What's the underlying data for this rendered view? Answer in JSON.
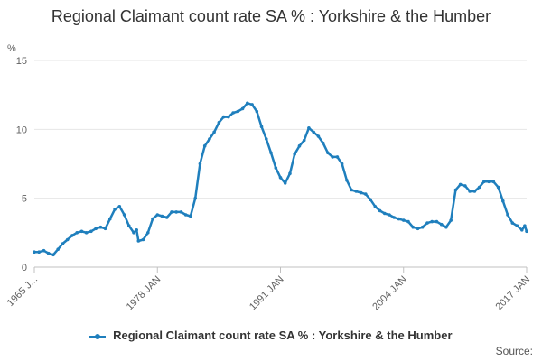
{
  "chart_data": {
    "type": "line",
    "title": "Regional Claimant count rate SA % : Yorkshire & the Humber",
    "ylabel": "%",
    "ylim": [
      0,
      15
    ],
    "yticks": [
      "0",
      "5",
      "10",
      "15"
    ],
    "xlim": [
      1965.0,
      2017.0
    ],
    "xtick_labels": [
      "1965 J...",
      "1978 JAN",
      "1991 JAN",
      "2004 JAN",
      "2017 JAN"
    ],
    "grid": true,
    "legend_position": "bottom",
    "series": [
      {
        "name": "Regional Claimant count rate SA % : Yorkshire & the Humber",
        "color": "#1f7fbd",
        "points": [
          [
            1965.0,
            1.1
          ],
          [
            1965.5,
            1.1
          ],
          [
            1966.0,
            1.2
          ],
          [
            1966.5,
            1.0
          ],
          [
            1967.0,
            0.9
          ],
          [
            1967.5,
            1.3
          ],
          [
            1968.0,
            1.7
          ],
          [
            1968.5,
            2.0
          ],
          [
            1969.0,
            2.3
          ],
          [
            1969.5,
            2.5
          ],
          [
            1970.0,
            2.6
          ],
          [
            1970.5,
            2.5
          ],
          [
            1971.0,
            2.6
          ],
          [
            1971.5,
            2.8
          ],
          [
            1972.0,
            2.9
          ],
          [
            1972.5,
            2.8
          ],
          [
            1973.0,
            3.5
          ],
          [
            1973.5,
            4.2
          ],
          [
            1974.0,
            4.4
          ],
          [
            1974.5,
            3.8
          ],
          [
            1975.0,
            3.0
          ],
          [
            1975.5,
            2.5
          ],
          [
            1975.8,
            2.7
          ],
          [
            1976.0,
            1.9
          ],
          [
            1976.5,
            2.0
          ],
          [
            1977.0,
            2.5
          ],
          [
            1977.5,
            3.5
          ],
          [
            1978.0,
            3.8
          ],
          [
            1978.5,
            3.7
          ],
          [
            1979.0,
            3.6
          ],
          [
            1979.5,
            4.0
          ],
          [
            1980.0,
            4.0
          ],
          [
            1980.5,
            4.0
          ],
          [
            1981.0,
            3.8
          ],
          [
            1981.5,
            3.7
          ],
          [
            1982.0,
            5.0
          ],
          [
            1982.5,
            7.5
          ],
          [
            1983.0,
            8.8
          ],
          [
            1983.5,
            9.3
          ],
          [
            1984.0,
            9.8
          ],
          [
            1984.5,
            10.5
          ],
          [
            1985.0,
            10.9
          ],
          [
            1985.5,
            10.9
          ],
          [
            1986.0,
            11.2
          ],
          [
            1986.5,
            11.3
          ],
          [
            1987.0,
            11.5
          ],
          [
            1987.5,
            11.9
          ],
          [
            1988.0,
            11.8
          ],
          [
            1988.5,
            11.3
          ],
          [
            1989.0,
            10.2
          ],
          [
            1989.5,
            9.3
          ],
          [
            1990.0,
            8.3
          ],
          [
            1990.5,
            7.2
          ],
          [
            1991.0,
            6.5
          ],
          [
            1991.5,
            6.1
          ],
          [
            1992.0,
            6.8
          ],
          [
            1992.5,
            8.2
          ],
          [
            1993.0,
            8.8
          ],
          [
            1993.5,
            9.2
          ],
          [
            1994.0,
            10.1
          ],
          [
            1994.5,
            9.8
          ],
          [
            1995.0,
            9.5
          ],
          [
            1995.5,
            9.0
          ],
          [
            1996.0,
            8.3
          ],
          [
            1996.5,
            8.0
          ],
          [
            1997.0,
            8.0
          ],
          [
            1997.5,
            7.5
          ],
          [
            1998.0,
            6.3
          ],
          [
            1998.5,
            5.6
          ],
          [
            1999.0,
            5.5
          ],
          [
            1999.5,
            5.4
          ],
          [
            2000.0,
            5.3
          ],
          [
            2000.5,
            4.9
          ],
          [
            2001.0,
            4.4
          ],
          [
            2001.5,
            4.1
          ],
          [
            2002.0,
            3.9
          ],
          [
            2002.5,
            3.8
          ],
          [
            2003.0,
            3.6
          ],
          [
            2003.5,
            3.5
          ],
          [
            2004.0,
            3.4
          ],
          [
            2004.5,
            3.3
          ],
          [
            2005.0,
            2.9
          ],
          [
            2005.5,
            2.8
          ],
          [
            2006.0,
            2.9
          ],
          [
            2006.5,
            3.2
          ],
          [
            2007.0,
            3.3
          ],
          [
            2007.5,
            3.3
          ],
          [
            2008.0,
            3.1
          ],
          [
            2008.5,
            2.9
          ],
          [
            2009.0,
            3.4
          ],
          [
            2009.5,
            5.6
          ],
          [
            2010.0,
            6.0
          ],
          [
            2010.5,
            5.9
          ],
          [
            2011.0,
            5.5
          ],
          [
            2011.5,
            5.5
          ],
          [
            2012.0,
            5.8
          ],
          [
            2012.5,
            6.2
          ],
          [
            2013.0,
            6.2
          ],
          [
            2013.5,
            6.2
          ],
          [
            2014.0,
            5.8
          ],
          [
            2014.5,
            4.8
          ],
          [
            2015.0,
            3.8
          ],
          [
            2015.5,
            3.2
          ],
          [
            2016.0,
            3.0
          ],
          [
            2016.5,
            2.7
          ],
          [
            2016.8,
            3.0
          ],
          [
            2017.0,
            2.6
          ]
        ]
      }
    ]
  },
  "source_label": "Source:"
}
